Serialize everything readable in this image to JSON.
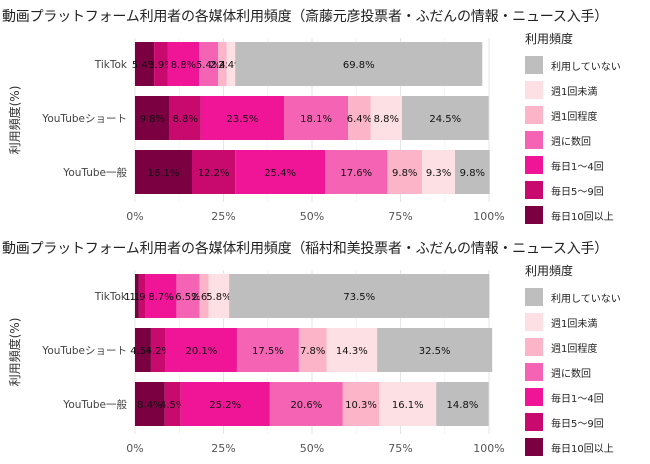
{
  "legend_title": "利用頻度",
  "categories_legend": [
    "利用していない",
    "週1回未満",
    "週1回程度",
    "週に数回",
    "毎日1～4回",
    "毎日5～9回",
    "毎日10回以上"
  ],
  "colors": {
    "毎日10回以上": "#7a0042",
    "毎日5～9回": "#c80a6e",
    "毎日1～4回": "#f01496",
    "週に数回": "#f564b4",
    "週1回程度": "#fbb4c8",
    "週1回未満": "#fde0e4",
    "利用していない": "#bebebe"
  },
  "chart_data": [
    {
      "type": "bar",
      "orientation": "horizontal",
      "stacked": true,
      "title": "動画プラットフォーム利用者の各媒体利用頻度（斎藤元彦投票者・ふだんの情報・ニュース入手）",
      "ylabel": "利用頻度(%)",
      "xlim": [
        0,
        100
      ],
      "xticks": [
        "0%",
        "25%",
        "50%",
        "75%",
        "100%"
      ],
      "categories": [
        "TikTok",
        "YouTubeショート",
        "YouTube一般"
      ],
      "series": [
        {
          "name": "毎日10回以上",
          "values": [
            5.4,
            9.8,
            16.1
          ],
          "labels": [
            "5.4%",
            "9.8%",
            "16.1%"
          ]
        },
        {
          "name": "毎日5～9回",
          "values": [
            3.9,
            8.8,
            12.2
          ],
          "labels": [
            "3.9%",
            "8.8%",
            "12.2%"
          ]
        },
        {
          "name": "毎日1～4回",
          "values": [
            8.8,
            23.5,
            25.4
          ],
          "labels": [
            "8.8%",
            "23.5%",
            "25.4%"
          ]
        },
        {
          "name": "週に数回",
          "values": [
            5.4,
            18.1,
            17.6
          ],
          "labels": [
            "5.4%",
            "18.1%",
            "17.6%"
          ]
        },
        {
          "name": "週1回程度",
          "values": [
            2.4,
            6.4,
            9.8
          ],
          "labels": [
            "2.4%",
            "6.4%",
            "9.8%"
          ]
        },
        {
          "name": "週1回未満",
          "values": [
            2.4,
            8.8,
            9.3
          ],
          "labels": [
            "2.4%",
            "8.8%",
            "9.3%"
          ]
        },
        {
          "name": "利用していない",
          "values": [
            69.8,
            24.5,
            9.8
          ],
          "labels": [
            "69.8%",
            "24.5%",
            "9.8%"
          ]
        }
      ]
    },
    {
      "type": "bar",
      "orientation": "horizontal",
      "stacked": true,
      "title": "動画プラットフォーム利用者の各媒体利用頻度（稲村和美投票者・ふだんの情報・ニュース入手）",
      "ylabel": "利用頻度(%)",
      "xlim": [
        0,
        100
      ],
      "xticks": [
        "0%",
        "25%",
        "50%",
        "75%",
        "100%"
      ],
      "categories": [
        "TikTok",
        "YouTubeショート",
        "YouTube一般"
      ],
      "series": [
        {
          "name": "毎日10回以上",
          "values": [
            1.1,
            4.5,
            8.4
          ],
          "labels": [
            "1.1%",
            "4.5%",
            "8.4%"
          ]
        },
        {
          "name": "毎日5～9回",
          "values": [
            1.9,
            4.2,
            4.5
          ],
          "labels": [
            "1.9%",
            "4.2%",
            "4.5%"
          ]
        },
        {
          "name": "毎日1～4回",
          "values": [
            8.7,
            20.1,
            25.2
          ],
          "labels": [
            "8.7%",
            "20.1%",
            "25.2%"
          ]
        },
        {
          "name": "週に数回",
          "values": [
            6.5,
            17.5,
            20.6
          ],
          "labels": [
            "6.5%",
            "17.5%",
            "20.6%"
          ]
        },
        {
          "name": "週1回程度",
          "values": [
            2.6,
            7.8,
            10.3
          ],
          "labels": [
            "2.6%",
            "7.8%",
            "10.3%"
          ]
        },
        {
          "name": "週1回未満",
          "values": [
            5.8,
            14.3,
            16.1
          ],
          "labels": [
            "5.8%",
            "14.3%",
            "16.1%"
          ]
        },
        {
          "name": "利用していない",
          "values": [
            73.5,
            32.5,
            14.8
          ],
          "labels": [
            "73.5%",
            "32.5%",
            "14.8%"
          ]
        }
      ]
    }
  ]
}
